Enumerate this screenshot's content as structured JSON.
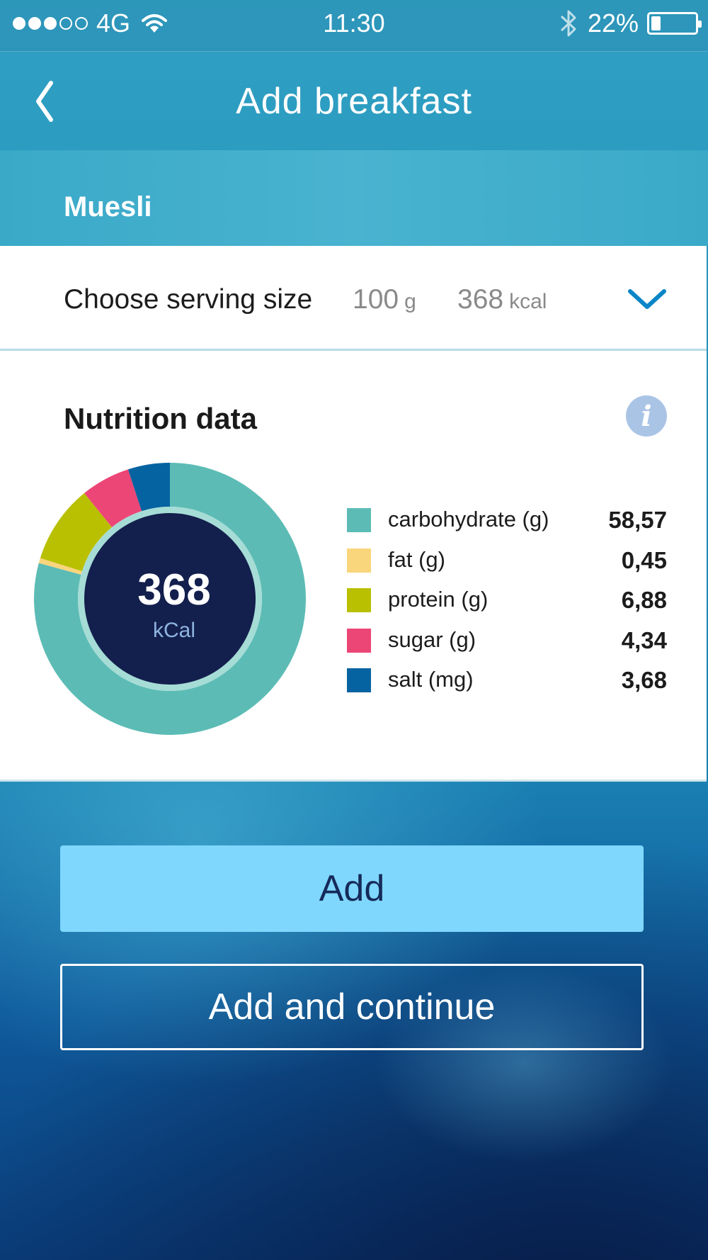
{
  "status_bar": {
    "carrier": "4G",
    "signal_bars_full": 3,
    "signal_bars_total": 5,
    "time": "11:30",
    "battery": "22%",
    "battery_level": 0.22,
    "icons": [
      "signal-dots-icon",
      "wifi-icon",
      "bluetooth-icon",
      "battery-icon"
    ]
  },
  "header": {
    "title": "Add breakfast",
    "back_icon": "chevron-left-icon"
  },
  "food": {
    "name": "Muesli"
  },
  "serving": {
    "label": "Choose serving size",
    "amount": "100",
    "amount_unit": "g",
    "kcal": "368",
    "kcal_unit": "kcal",
    "dropdown_icon": "chevron-down-icon",
    "accent_color": "#0a86c8"
  },
  "nutrition": {
    "title": "Nutrition data",
    "info_icon": "info-icon",
    "kcal_value": "368",
    "kcal_unit": "kCal",
    "items": [
      {
        "label": "carbohydrate (g)",
        "value": "58,57",
        "color": "#5cbcb5",
        "amount": 58.57
      },
      {
        "label": "fat (g)",
        "value": "0,45",
        "color": "#f9d57c",
        "amount": 0.45
      },
      {
        "label": "protein (g)",
        "value": "6,88",
        "color": "#b9c001",
        "amount": 6.88
      },
      {
        "label": "sugar (g)",
        "value": "4,34",
        "color": "#ec4676",
        "amount": 4.34
      },
      {
        "label": "salt (mg)",
        "value": "3,68",
        "color": "#0663a1",
        "amount": 3.68
      }
    ]
  },
  "actions": {
    "add_label": "Add",
    "add_continue_label": "Add and continue"
  }
}
